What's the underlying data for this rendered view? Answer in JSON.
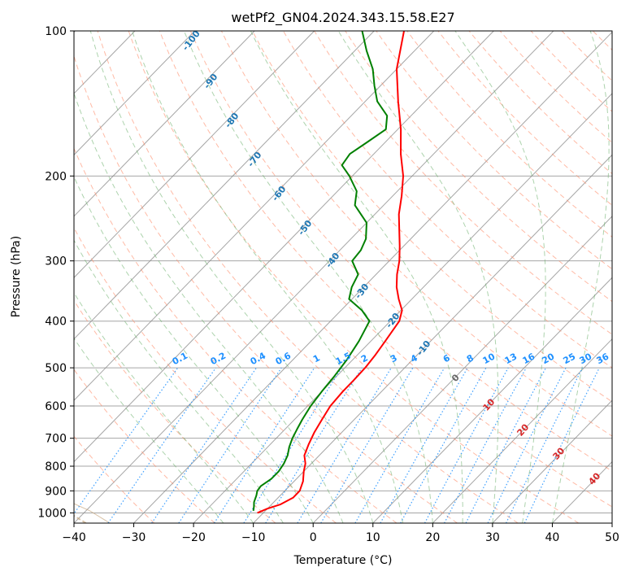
{
  "chart_data": {
    "type": "line",
    "title": "wetPf2_GN04.2024.343.15.58.E27",
    "xlabel": "Temperature (°C)",
    "ylabel": "Pressure (hPa)",
    "xlim": [
      -40,
      50
    ],
    "ylim": [
      1050,
      100
    ],
    "y_scale": "log",
    "skew_t": true,
    "grid": true,
    "x_ticks": [
      -40,
      -30,
      -20,
      -10,
      0,
      10,
      20,
      30,
      40,
      50
    ],
    "y_ticks": [
      1000,
      900,
      800,
      700,
      600,
      500,
      400,
      300,
      200,
      100
    ],
    "series": [
      {
        "color": "#ff0000",
        "role": "temperature",
        "points": [
          [
            1000,
            -11
          ],
          [
            980,
            -10
          ],
          [
            960,
            -8.5
          ],
          [
            930,
            -7.5
          ],
          [
            900,
            -7.5
          ],
          [
            860,
            -8.5
          ],
          [
            820,
            -10
          ],
          [
            790,
            -11
          ],
          [
            760,
            -12.5
          ],
          [
            720,
            -13.6
          ],
          [
            680,
            -14.6
          ],
          [
            640,
            -15.4
          ],
          [
            600,
            -16.2
          ],
          [
            560,
            -16.5
          ],
          [
            530,
            -16.5
          ],
          [
            500,
            -16.6
          ],
          [
            470,
            -17
          ],
          [
            440,
            -17.6
          ],
          [
            400,
            -18.5
          ],
          [
            380,
            -19.8
          ],
          [
            360,
            -22.2
          ],
          [
            340,
            -24.5
          ],
          [
            320,
            -26.5
          ],
          [
            300,
            -28.3
          ],
          [
            280,
            -30.6
          ],
          [
            260,
            -33.2
          ],
          [
            240,
            -36
          ],
          [
            220,
            -38.5
          ],
          [
            200,
            -41.5
          ],
          [
            180,
            -45.5
          ],
          [
            160,
            -49.5
          ],
          [
            140,
            -54.5
          ],
          [
            120,
            -60
          ],
          [
            100,
            -65
          ]
        ]
      },
      {
        "color": "#008000",
        "role": "dewpoint",
        "points": [
          [
            990,
            -12
          ],
          [
            970,
            -12.6
          ],
          [
            950,
            -13.3
          ],
          [
            920,
            -14
          ],
          [
            900,
            -14.6
          ],
          [
            880,
            -14.8
          ],
          [
            850,
            -14.2
          ],
          [
            820,
            -14.2
          ],
          [
            790,
            -14.6
          ],
          [
            760,
            -15.3
          ],
          [
            730,
            -16.4
          ],
          [
            700,
            -17.3
          ],
          [
            670,
            -18
          ],
          [
            640,
            -18.7
          ],
          [
            600,
            -19.5
          ],
          [
            560,
            -20
          ],
          [
            520,
            -20.4
          ],
          [
            480,
            -21
          ],
          [
            440,
            -22
          ],
          [
            400,
            -23.5
          ],
          [
            380,
            -26.5
          ],
          [
            360,
            -30.5
          ],
          [
            340,
            -32
          ],
          [
            320,
            -33
          ],
          [
            300,
            -36.2
          ],
          [
            285,
            -36.5
          ],
          [
            270,
            -37.5
          ],
          [
            250,
            -40
          ],
          [
            230,
            -44.8
          ],
          [
            215,
            -46.8
          ],
          [
            200,
            -50.5
          ],
          [
            190,
            -53.5
          ],
          [
            180,
            -54
          ],
          [
            170,
            -53
          ],
          [
            160,
            -52
          ],
          [
            150,
            -54
          ],
          [
            140,
            -58
          ],
          [
            130,
            -61
          ],
          [
            120,
            -64
          ],
          [
            110,
            -68
          ],
          [
            100,
            -72
          ]
        ]
      }
    ],
    "dry_adiabat_labels": [
      "10",
      "20",
      "30",
      "40"
    ],
    "zero_label": "0",
    "moist_adiabat_labels": [
      "-100",
      "-90",
      "-80",
      "-70",
      "-60",
      "-50",
      "-40",
      "-30",
      "-20",
      "-10"
    ],
    "mixing_ratio_labels": [
      "0.1",
      "0.2",
      "0.4",
      "0.6",
      "1",
      "1.5",
      "2",
      "3",
      "4",
      "6",
      "8",
      "10",
      "13",
      "16",
      "20",
      "25",
      "30",
      "36"
    ],
    "colors": {
      "isotherm": "#888888",
      "isobar": "#888888",
      "dry_adiabat": "#ff8c69",
      "moist_adiabat": "#6aaf6a",
      "mixing_ratio": "#1e90ff",
      "lcl_curve": "#c8a882"
    }
  }
}
